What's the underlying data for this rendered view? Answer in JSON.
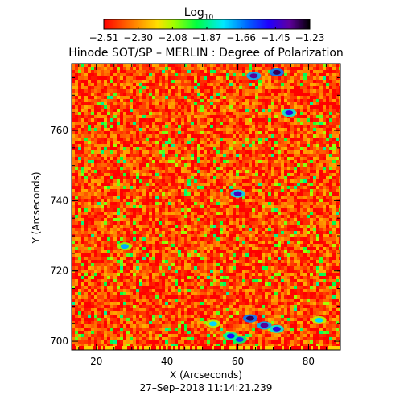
{
  "chart_data": {
    "type": "heatmap",
    "title": "Hinode SOT/SP – MERLIN : Degree of Polarization",
    "colorbar": {
      "label_base": "Log",
      "label_sub": "10",
      "ticks": [
        "−2.51",
        "−2.30",
        "−2.08",
        "−1.87",
        "−1.66",
        "−1.45",
        "−1.23"
      ],
      "range": [
        -2.51,
        -1.23
      ],
      "colormap": "rainbow (red → yellow → green → cyan → blue → purple → black)",
      "orientation": "horizontal",
      "placement": "top"
    },
    "xlabel": "X (Arcseconds)",
    "ylabel": "Y (Arcseconds)",
    "xticks": [
      "20",
      "40",
      "60",
      "80"
    ],
    "yticks": [
      "700",
      "720",
      "740",
      "760"
    ],
    "xlim": [
      13,
      89
    ],
    "ylim": [
      697.5,
      779
    ],
    "typical_level": -2.4,
    "features": [
      {
        "x": 64.5,
        "y": 775.5,
        "level": -1.35
      },
      {
        "x": 71.0,
        "y": 776.5,
        "level": -1.3
      },
      {
        "x": 74.5,
        "y": 765.0,
        "level": -1.45
      },
      {
        "x": 60.0,
        "y": 742.0,
        "level": -1.4
      },
      {
        "x": 28.0,
        "y": 727.0,
        "level": -1.7
      },
      {
        "x": 53.0,
        "y": 705.0,
        "level": -1.75
      },
      {
        "x": 63.5,
        "y": 706.5,
        "level": -1.3
      },
      {
        "x": 67.5,
        "y": 704.5,
        "level": -1.35
      },
      {
        "x": 71.0,
        "y": 703.5,
        "level": -1.45
      },
      {
        "x": 60.5,
        "y": 700.5,
        "level": -1.55
      },
      {
        "x": 58.0,
        "y": 701.5,
        "level": -1.5
      },
      {
        "x": 83.0,
        "y": 706.0,
        "level": -1.75
      }
    ],
    "timestamp": "27–Sep–2018 11:14:21.239"
  }
}
